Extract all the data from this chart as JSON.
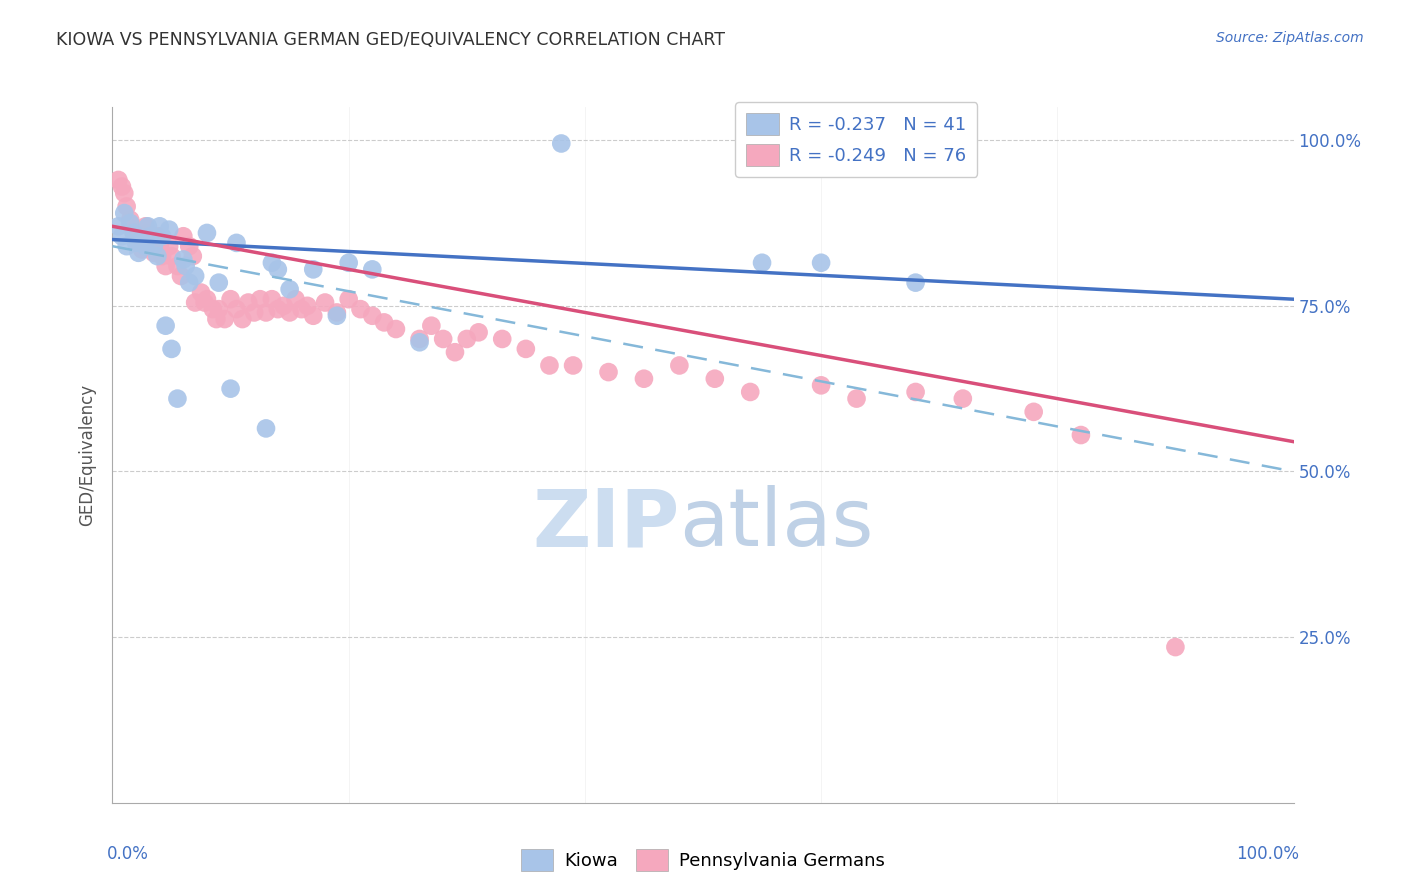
{
  "title": "KIOWA VS PENNSYLVANIA GERMAN GED/EQUIVALENCY CORRELATION CHART",
  "source": "Source: ZipAtlas.com",
  "ylabel": "GED/Equivalency",
  "xlim": [
    0.0,
    1.0
  ],
  "ylim": [
    0.0,
    1.05
  ],
  "yticks": [
    0.0,
    0.25,
    0.5,
    0.75,
    1.0
  ],
  "right_ytick_labels": [
    "",
    "25.0%",
    "50.0%",
    "75.0%",
    "100.0%"
  ],
  "legend_r_kiowa": "-0.237",
  "legend_n_kiowa": "41",
  "legend_r_pg": "-0.249",
  "legend_n_pg": "76",
  "kiowa_color": "#a8c4e8",
  "pg_color": "#f5a8be",
  "trend_kiowa_color": "#4472c4",
  "trend_pg_color": "#d94f7a",
  "trend_dash_color": "#85b8d9",
  "background_color": "#ffffff",
  "watermark_color": "#ccddf0",
  "kiowa_x": [
    0.005,
    0.008,
    0.01,
    0.012,
    0.015,
    0.018,
    0.02,
    0.022,
    0.025,
    0.028,
    0.03,
    0.032,
    0.035,
    0.038,
    0.04,
    0.042,
    0.045,
    0.048,
    0.05,
    0.055,
    0.06,
    0.062,
    0.065,
    0.07,
    0.08,
    0.09,
    0.1,
    0.105,
    0.13,
    0.135,
    0.14,
    0.15,
    0.17,
    0.19,
    0.2,
    0.22,
    0.26,
    0.38,
    0.55,
    0.6,
    0.68
  ],
  "kiowa_y": [
    0.87,
    0.855,
    0.89,
    0.84,
    0.875,
    0.86,
    0.845,
    0.83,
    0.85,
    0.84,
    0.87,
    0.855,
    0.84,
    0.825,
    0.87,
    0.855,
    0.72,
    0.865,
    0.685,
    0.61,
    0.82,
    0.81,
    0.785,
    0.795,
    0.86,
    0.785,
    0.625,
    0.845,
    0.565,
    0.815,
    0.805,
    0.775,
    0.805,
    0.735,
    0.815,
    0.805,
    0.695,
    0.995,
    0.815,
    0.815,
    0.785
  ],
  "pg_x": [
    0.005,
    0.008,
    0.01,
    0.012,
    0.015,
    0.018,
    0.02,
    0.022,
    0.025,
    0.028,
    0.03,
    0.032,
    0.035,
    0.038,
    0.04,
    0.042,
    0.045,
    0.048,
    0.05,
    0.055,
    0.058,
    0.06,
    0.065,
    0.068,
    0.07,
    0.075,
    0.078,
    0.08,
    0.085,
    0.088,
    0.09,
    0.095,
    0.1,
    0.105,
    0.11,
    0.115,
    0.12,
    0.125,
    0.13,
    0.135,
    0.14,
    0.145,
    0.15,
    0.155,
    0.16,
    0.165,
    0.17,
    0.18,
    0.19,
    0.2,
    0.21,
    0.22,
    0.23,
    0.24,
    0.26,
    0.27,
    0.28,
    0.29,
    0.3,
    0.31,
    0.33,
    0.35,
    0.37,
    0.39,
    0.42,
    0.45,
    0.48,
    0.51,
    0.54,
    0.6,
    0.63,
    0.68,
    0.72,
    0.78,
    0.82,
    0.9
  ],
  "pg_y": [
    0.94,
    0.93,
    0.92,
    0.9,
    0.88,
    0.86,
    0.855,
    0.845,
    0.835,
    0.87,
    0.86,
    0.845,
    0.83,
    0.855,
    0.84,
    0.825,
    0.81,
    0.84,
    0.825,
    0.81,
    0.795,
    0.855,
    0.84,
    0.825,
    0.755,
    0.77,
    0.755,
    0.76,
    0.745,
    0.73,
    0.745,
    0.73,
    0.76,
    0.745,
    0.73,
    0.755,
    0.74,
    0.76,
    0.74,
    0.76,
    0.745,
    0.75,
    0.74,
    0.76,
    0.745,
    0.75,
    0.735,
    0.755,
    0.74,
    0.76,
    0.745,
    0.735,
    0.725,
    0.715,
    0.7,
    0.72,
    0.7,
    0.68,
    0.7,
    0.71,
    0.7,
    0.685,
    0.66,
    0.66,
    0.65,
    0.64,
    0.66,
    0.64,
    0.62,
    0.63,
    0.61,
    0.62,
    0.61,
    0.59,
    0.555,
    0.235
  ],
  "trend_kiowa_start_y": 0.85,
  "trend_kiowa_end_y": 0.76,
  "trend_pg_start_y": 0.87,
  "trend_pg_end_y": 0.545,
  "trend_dash_start_y": 0.84,
  "trend_dash_end_y": 0.5
}
